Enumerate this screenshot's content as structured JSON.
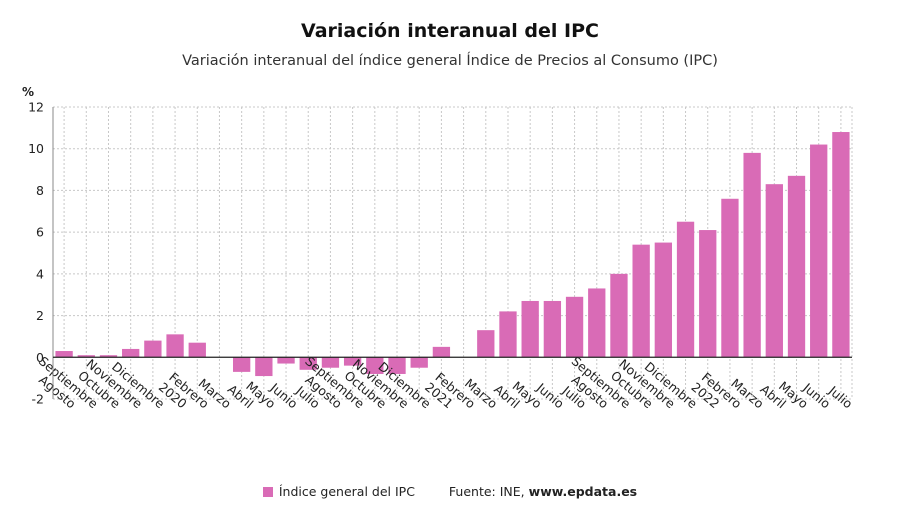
{
  "chart_data": {
    "type": "bar",
    "title": "Variación interanual del IPC",
    "subtitle": "Variación interanual del índice general Índice de Precios al Consumo (IPC)",
    "ylabel": "%",
    "xlabel": "",
    "ylim": [
      -2,
      12
    ],
    "yticks": [
      -2,
      0,
      2,
      4,
      6,
      8,
      10,
      12
    ],
    "grid": true,
    "legend_position": "bottom",
    "categories": [
      "Agosto",
      "Septiembre",
      "Octubre",
      "Noviembre",
      "Diciembre",
      "2020",
      "Febrero",
      "Marzo",
      "Abril",
      "Mayo",
      "Junio",
      "Julio",
      "Agosto",
      "Septiembre",
      "Octubre",
      "Noviembre",
      "Diciembre",
      "2021",
      "Febrero",
      "Marzo",
      "Abril",
      "Mayo",
      "Junio",
      "Julio",
      "Agosto",
      "Septiembre",
      "Octubre",
      "Noviembre",
      "Diciembre",
      "2022",
      "Febrero",
      "Marzo",
      "Abril",
      "Mayo",
      "Junio",
      "Julio"
    ],
    "series": [
      {
        "name": "Índice general del IPC",
        "color": "#d96bb6",
        "values": [
          0.3,
          0.1,
          0.1,
          0.4,
          0.8,
          1.1,
          0.7,
          0.0,
          -0.7,
          -0.9,
          -0.3,
          -0.6,
          -0.5,
          -0.4,
          -0.8,
          -0.8,
          -0.5,
          0.5,
          0.0,
          1.3,
          2.2,
          2.7,
          2.7,
          2.9,
          3.3,
          4.0,
          5.4,
          5.5,
          6.5,
          6.1,
          7.6,
          9.8,
          8.3,
          8.7,
          10.2,
          10.8
        ]
      }
    ]
  },
  "source": {
    "label": "Fuente: INE,",
    "site": "www.epdata.es"
  }
}
